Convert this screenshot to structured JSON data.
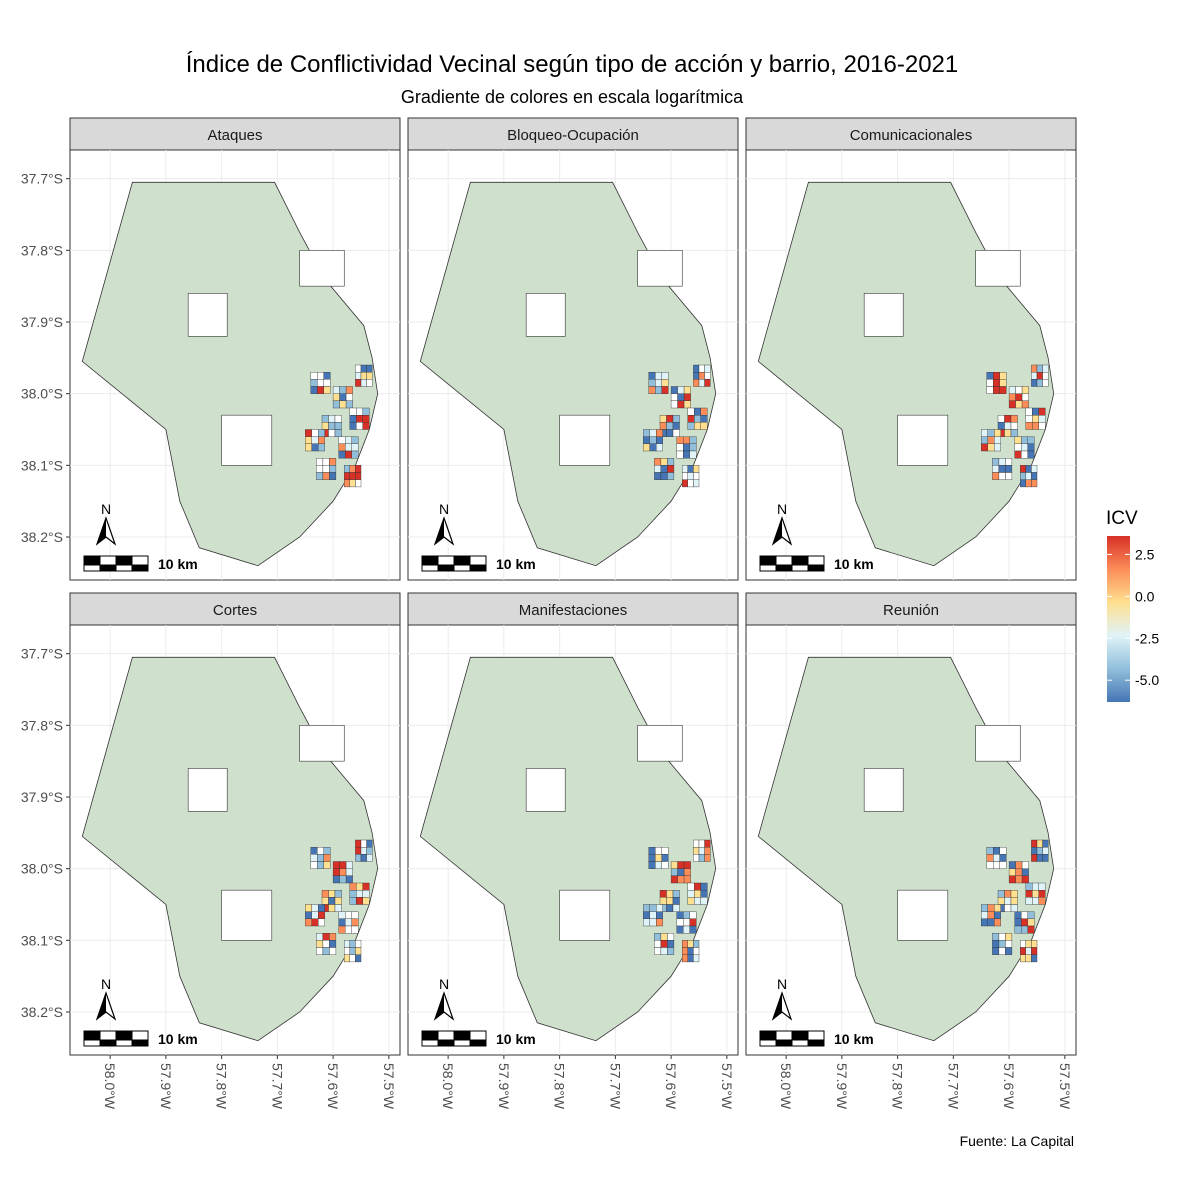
{
  "title": "Índice de Conflictividad Vecinal según tipo de acción y barrio, 2016-2021",
  "subtitle": "Gradiente de colores en escala logarítmica",
  "caption": "Fuente: La Capital",
  "scale_bar_label": "10 km",
  "north_label": "N",
  "y_ticks": [
    {
      "label": "37.7°S",
      "lat": -37.7
    },
    {
      "label": "37.8°S",
      "lat": -37.8
    },
    {
      "label": "37.9°S",
      "lat": -37.9
    },
    {
      "label": "38.0°S",
      "lat": -38.0
    },
    {
      "label": "38.1°S",
      "lat": -38.1
    },
    {
      "label": "38.2°S",
      "lat": -38.2
    }
  ],
  "x_ticks": [
    {
      "label": "58.0°W",
      "lon": -58.0
    },
    {
      "label": "57.9°W",
      "lon": -57.9
    },
    {
      "label": "57.8°W",
      "lon": -57.8
    },
    {
      "label": "57.7°W",
      "lon": -57.7
    },
    {
      "label": "57.6°W",
      "lon": -57.6
    },
    {
      "label": "57.5°W",
      "lon": -57.5
    }
  ],
  "facets": [
    {
      "name": "Ataques"
    },
    {
      "name": "Bloqueo-Ocupación"
    },
    {
      "name": "Comunicacionales"
    },
    {
      "name": "Cortes"
    },
    {
      "name": "Manifestaciones"
    },
    {
      "name": "Reunión"
    }
  ],
  "legend": {
    "title": "ICV",
    "ticks": [
      {
        "label": "2.5",
        "value": 2.5
      },
      {
        "label": "0.0",
        "value": 0.0
      },
      {
        "label": "-2.5",
        "value": -2.5
      },
      {
        "label": "-5.0",
        "value": -5.0
      }
    ],
    "range": [
      -6.3,
      3.6
    ],
    "colors": [
      "#4575b4",
      "#91bfdb",
      "#e0f3f8",
      "#fee090",
      "#fc8d59",
      "#d73027"
    ]
  },
  "base_fill": "#cfe1cd",
  "chart_data": {
    "type": "choropleth",
    "value_name": "ICV",
    "color_scale": "log-gradient",
    "facets": [
      "Ataques",
      "Bloqueo-Ocupación",
      "Comunicacionales",
      "Cortes",
      "Manifestaciones",
      "Reunión"
    ]
  }
}
